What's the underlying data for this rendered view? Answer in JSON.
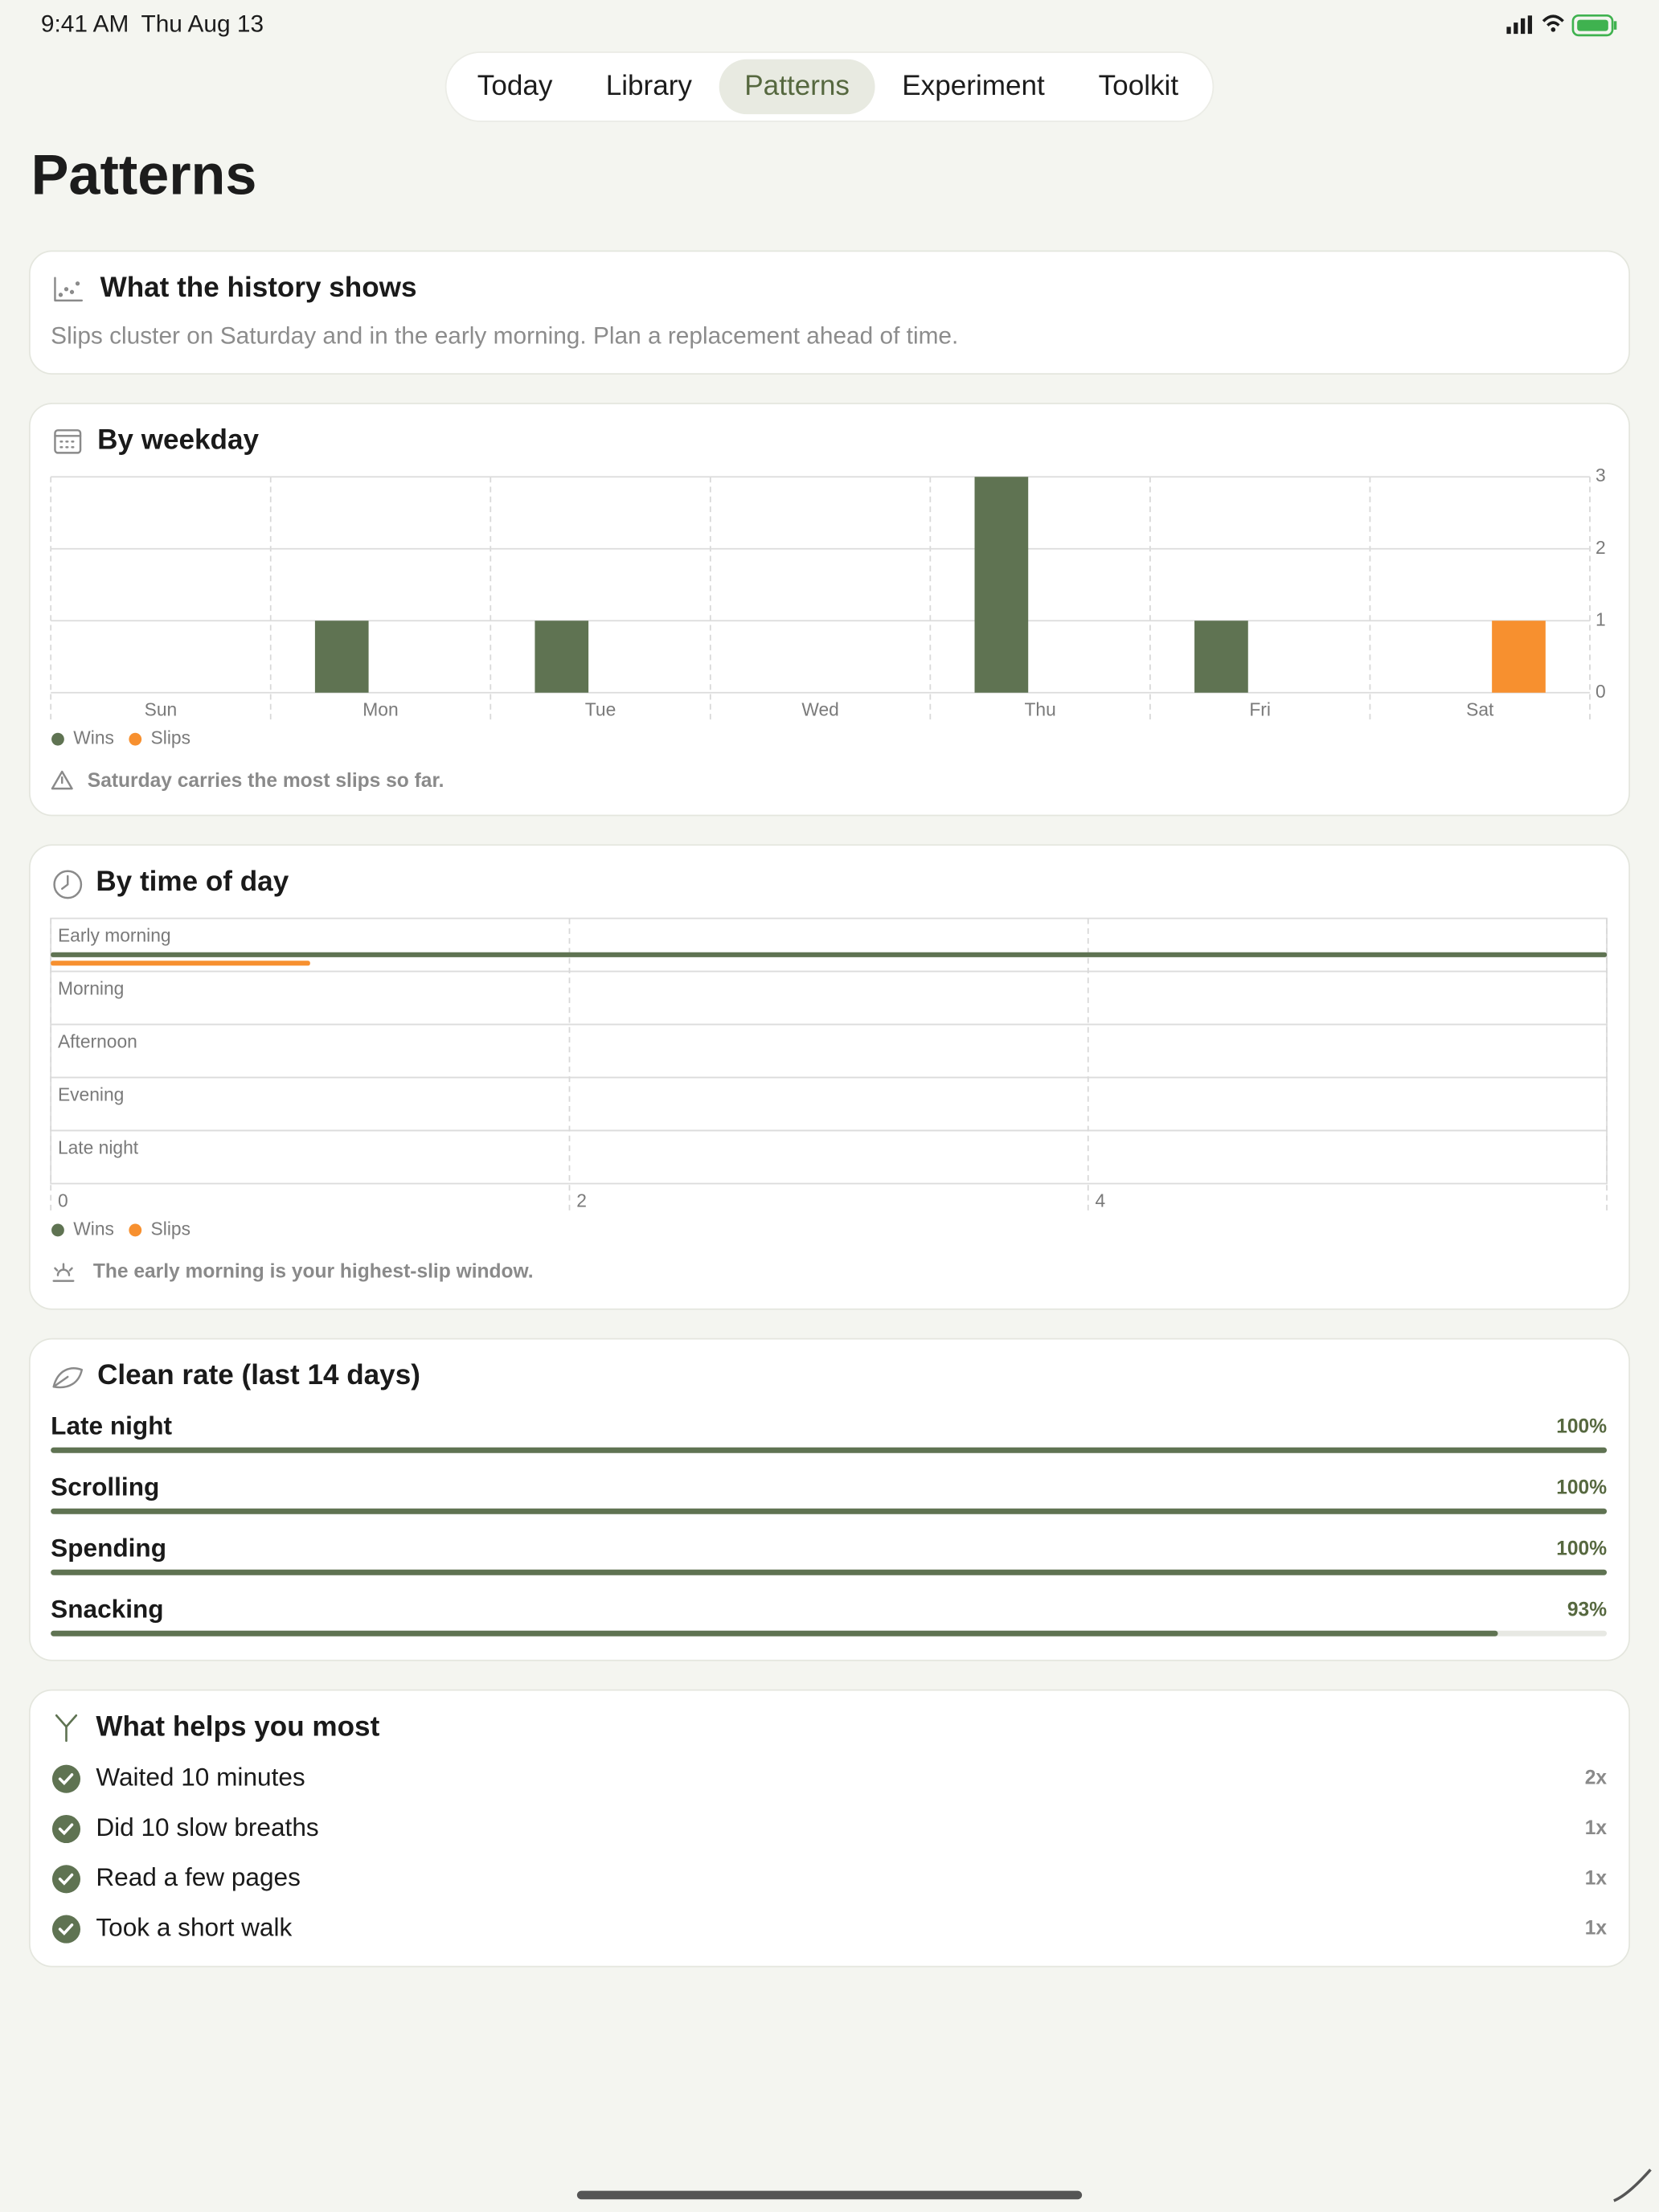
{
  "status_bar": {
    "time": "9:41 AM",
    "date": "Thu Aug 13"
  },
  "tabs": {
    "items": [
      "Today",
      "Library",
      "Patterns",
      "Experiment",
      "Toolkit"
    ],
    "selected": 2
  },
  "page_title": "Patterns",
  "insight": {
    "title": "What the history shows",
    "text": "Slips cluster on Saturday and in the early morning. Plan a replacement ahead of time."
  },
  "weekday_chart": {
    "type": "bar",
    "title": "By weekday",
    "categories": [
      "Sun",
      "Mon",
      "Tue",
      "Wed",
      "Thu",
      "Fri",
      "Sat"
    ],
    "series": [
      {
        "name": "Wins",
        "color": "#5f7352",
        "values": [
          0,
          1,
          1,
          0,
          3,
          1,
          0
        ]
      },
      {
        "name": "Slips",
        "color": "#f7902f",
        "values": [
          0,
          0,
          0,
          0,
          0,
          0,
          1
        ]
      }
    ],
    "ylim": [
      0,
      3
    ],
    "yticks": [
      0,
      1,
      2,
      3
    ],
    "note": "Saturday carries the most slips so far."
  },
  "time_chart": {
    "type": "bar",
    "orientation": "horizontal",
    "title": "By time of day",
    "categories": [
      "Early morning",
      "Morning",
      "Afternoon",
      "Evening",
      "Late night"
    ],
    "series": [
      {
        "name": "Wins",
        "color": "#5f7352",
        "values": [
          6,
          0,
          0,
          0,
          0
        ]
      },
      {
        "name": "Slips",
        "color": "#f7902f",
        "values": [
          1,
          0,
          0,
          0,
          0
        ]
      }
    ],
    "xlim": [
      0,
      6
    ],
    "xticks": [
      0,
      2,
      4
    ],
    "note": "The early morning is your highest-slip window."
  },
  "clean_rate": {
    "type": "bar",
    "title": "Clean rate (last 14 days)",
    "categories": [
      "Late night",
      "Scrolling",
      "Spending",
      "Snacking"
    ],
    "values": [
      100,
      100,
      100,
      93
    ],
    "value_labels": [
      "100%",
      "100%",
      "100%",
      "93%"
    ],
    "xlim": [
      0,
      100
    ],
    "color": "#5f7352"
  },
  "helps": {
    "title": "What helps you most",
    "items": [
      {
        "label": "Waited 10 minutes",
        "count": "2x"
      },
      {
        "label": "Did 10 slow breaths",
        "count": "1x"
      },
      {
        "label": "Read a few pages",
        "count": "1x"
      },
      {
        "label": "Took a short walk",
        "count": "1x"
      }
    ]
  }
}
